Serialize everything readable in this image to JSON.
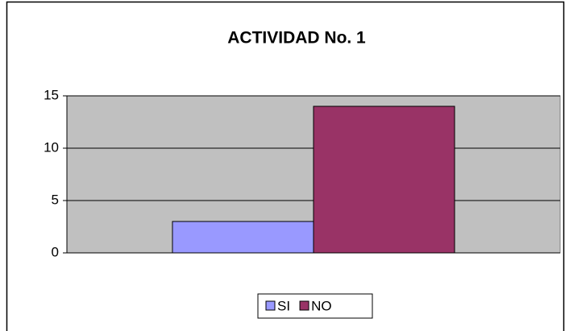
{
  "chart_data": {
    "type": "bar",
    "title": "ACTIVIDAD No. 1",
    "categories": [
      null
    ],
    "series": [
      {
        "name": "SI",
        "color": "#9999ff",
        "values": [
          3
        ]
      },
      {
        "name": "NO",
        "color": "#993366",
        "values": [
          14
        ]
      }
    ],
    "ylim": [
      0,
      15
    ],
    "yticks": [
      0,
      5,
      10,
      15
    ],
    "grid": true,
    "legend": "bottom"
  }
}
